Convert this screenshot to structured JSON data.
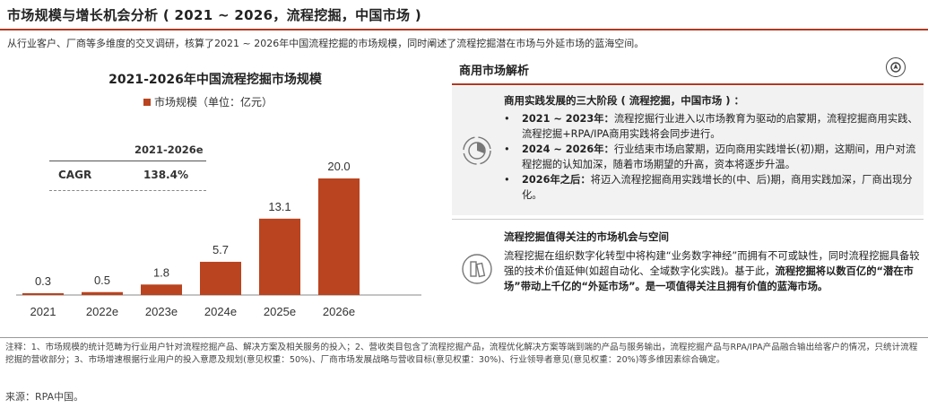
{
  "header": {
    "title": "市场规模与增长机会分析 ( 2021 ~ 2026，流程挖掘，中国市场 )",
    "subtitle": "从行业客户、厂商等多维度的交叉调研，核算了2021 ~ 2026年中国流程挖掘的市场规模，同时阐述了流程挖掘潜在市场与外延市场的蓝海空间。"
  },
  "chart_data": {
    "type": "bar",
    "title": "2021-2026年中国流程挖掘市场规模",
    "legend": "市场规模（单位：亿元）",
    "categories": [
      "2021",
      "2022e",
      "2023e",
      "2024e",
      "2025e",
      "2026e"
    ],
    "values": [
      0.3,
      0.5,
      1.8,
      5.7,
      13.1,
      20.0
    ],
    "value_labels": [
      "0.3",
      "0.5",
      "1.8",
      "5.7",
      "13.1",
      "20.0"
    ],
    "ylim": [
      0,
      20
    ],
    "color": "#b9441f",
    "cagr_table": {
      "period": "2021-2026e",
      "label": "CAGR",
      "value": "138.4%"
    }
  },
  "panel": {
    "title": "商用市场解析",
    "section1": {
      "title": "商用实践发展的三大阶段 ( 流程挖掘，中国市场 ) ：",
      "items": [
        {
          "lead": "2021 ~ 2023年：",
          "text": "流程挖掘行业进入以市场教育为驱动的启蒙期，流程挖掘商用实践、流程挖掘+RPA/IPA商用实践将会同步进行。"
        },
        {
          "lead": "2024 ~ 2026年：",
          "text": "行业结束市场启蒙期，迈向商用实践增长(初)期，这期间，用户对流程挖掘的认知加深，随着市场期望的升高，资本将逐步升温。"
        },
        {
          "lead": "2026年之后：",
          "text": "将迈入流程挖掘商用实践增长的(中、后)期，商用实践加深，厂商出现分化。"
        }
      ]
    },
    "section2": {
      "title": "流程挖掘值得关注的市场机会与空间",
      "text_plain": "流程挖掘在组织数字化转型中将构建“业务数字神经”而拥有不可或缺性，同时流程挖掘具备较强的技术价值延伸(如超自动化、全域数字化实践)。基于此，",
      "text_bold": "流程挖掘将以数百亿的“潜在市场”带动上千亿的“外延市场”。是一项值得关注且拥有价值的蓝海市场。"
    }
  },
  "footer": {
    "notes": "注释：1、市场规模的统计范畴为行业用户针对流程挖掘产品、解决方案及相关服务的投入；2、营收类目包含了流程挖掘产品，流程优化解决方案等端到端的产品与服务输出，流程挖掘产品与RPA/IPA产品融合输出给客户的情况，只统计流程挖掘的营收部分；3、市场增速根据行业用户的投入意愿及规划(意见权重：50%)、厂商市场发展战略与营收目标(意见权重：30%)、行业领导者意见(意见权重：20%)等多维因素综合确定。",
    "source": "来源：RPA中国。"
  }
}
